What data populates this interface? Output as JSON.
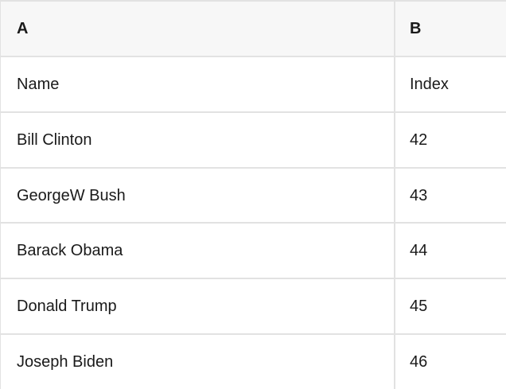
{
  "table": {
    "header": {
      "a": "A",
      "b": "B"
    },
    "rows": [
      {
        "a": "Name",
        "b": "Index"
      },
      {
        "a": "Bill Clinton",
        "b": "42"
      },
      {
        "a": "GeorgeW Bush",
        "b": "43"
      },
      {
        "a": "Barack Obama",
        "b": "44"
      },
      {
        "a": "Donald Trump",
        "b": "45"
      },
      {
        "a": "Joseph Biden",
        "b": "46"
      }
    ]
  },
  "colors": {
    "header_bg": "#f7f7f7",
    "row_bg": "#ffffff",
    "border": "#e2e2e2",
    "text": "#1a1a1a"
  }
}
